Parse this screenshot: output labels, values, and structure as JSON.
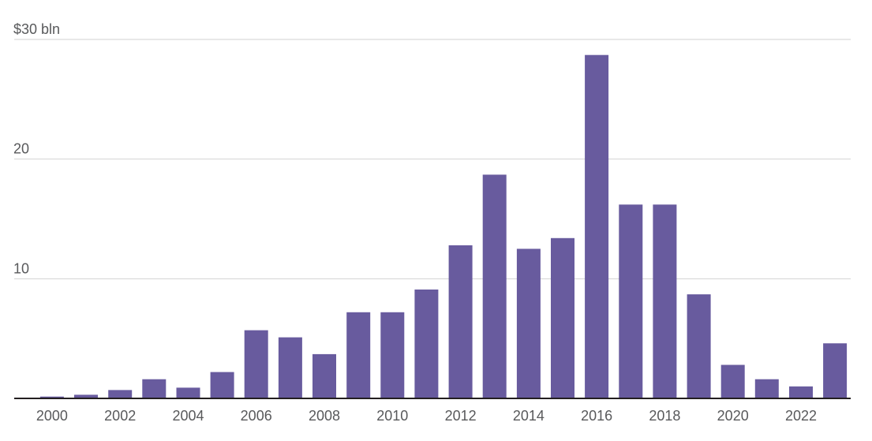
{
  "chart_data": {
    "type": "bar",
    "title": "",
    "xlabel": "",
    "ylabel": "$ bln",
    "categories": [
      2000,
      2001,
      2002,
      2003,
      2004,
      2005,
      2006,
      2007,
      2008,
      2009,
      2010,
      2011,
      2012,
      2013,
      2014,
      2015,
      2016,
      2017,
      2018,
      2019,
      2020,
      2021,
      2022,
      2023
    ],
    "values": [
      0.15,
      0.3,
      0.7,
      1.6,
      0.9,
      2.2,
      5.7,
      5.1,
      3.7,
      7.2,
      7.2,
      9.1,
      12.8,
      18.7,
      12.5,
      13.4,
      28.7,
      16.2,
      16.2,
      8.7,
      2.8,
      1.6,
      1.0,
      4.6
    ],
    "x_tick_labels": [
      "2000",
      "2002",
      "2004",
      "2006",
      "2008",
      "2010",
      "2012",
      "2014",
      "2016",
      "2018",
      "2020",
      "2022"
    ],
    "y_ticks": [
      {
        "value": 10,
        "label": "10"
      },
      {
        "value": 20,
        "label": "20"
      },
      {
        "value": 30,
        "label": "$30 bln"
      }
    ],
    "ylim": [
      0,
      30
    ],
    "grid": "horizontal gridlines at 10, 20, 30",
    "legend": "none",
    "colors": {
      "bar": "#685b9e",
      "gridline": "#d2d2d2",
      "axis_line": "#231f20",
      "text": "#58595b",
      "background": "#ffffff"
    }
  }
}
